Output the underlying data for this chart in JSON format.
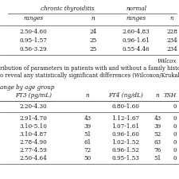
{
  "top_table": {
    "col_headers": [
      "chronic thyroiditis",
      "normal"
    ],
    "sub_headers": [
      "ranges",
      "n",
      "ranges",
      "n"
    ],
    "rows": [
      [
        "2.50-4.60",
        "24",
        "2.60-4.83",
        "228"
      ],
      [
        "0.95-1.57",
        "25",
        "0.96-1.61",
        "234"
      ],
      [
        "0.56-3.29",
        "25",
        "0.55-4.46",
        "234"
      ]
    ],
    "footer": "Wilcox",
    "note": "ribution of parameters in patients with and without a family history",
    "note2": "o reveal any statistically significant differences (Wilcoxon/Krukal-"
  },
  "bottom_table": {
    "title": "ange by age group",
    "col_headers": [
      "FT3 (pg/mL)",
      "n",
      "FT4 (ng/dL)",
      "n",
      "TSH"
    ],
    "ref_row": [
      "2.20-4.30",
      "",
      "0.80-1.60",
      "",
      "0"
    ],
    "rows": [
      [
        "2.91-4.70",
        "43",
        "1.12-1.67",
        "43",
        "0"
      ],
      [
        "3.10-5.10",
        "39",
        "1.07-1.61",
        "39",
        "0"
      ],
      [
        "3.10-4.87",
        "51",
        "0.96-1.60",
        "52",
        "0"
      ],
      [
        "2.78-4.90",
        "61",
        "1.02-1.52",
        "63",
        "0"
      ],
      [
        "2.77-4.59",
        "72",
        "0.96-1.52",
        "76",
        "0"
      ],
      [
        "2.50-4.64",
        "50",
        "0.95-1.53",
        "51",
        "0"
      ]
    ]
  },
  "bg_color": "#ffffff",
  "line_color": "#666666",
  "text_color": "#1a1a1a",
  "font_size": 5.2
}
